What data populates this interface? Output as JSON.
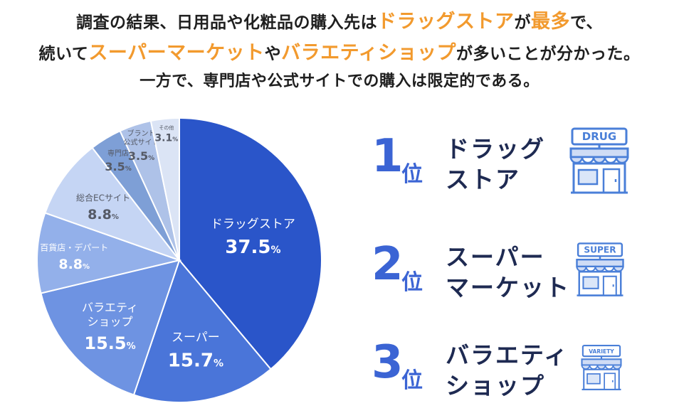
{
  "headline": {
    "line1": [
      {
        "text": "調査の結果、日用品や化粧品の購入先は",
        "accent": false
      },
      {
        "text": "ドラッグストア",
        "accent": true
      },
      {
        "text": "が",
        "accent": false
      },
      {
        "text": "最多",
        "accent": true
      },
      {
        "text": "で、",
        "accent": false
      }
    ],
    "line2": [
      {
        "text": "続いて",
        "accent": false
      },
      {
        "text": "スーパーマーケット",
        "accent": true
      },
      {
        "text": "や",
        "accent": false
      },
      {
        "text": "バラエティショップ",
        "accent": true
      },
      {
        "text": "が多いことが分かった。",
        "accent": false
      }
    ],
    "line3": "一方で、専門店や公式サイトでの購入は限定的である。"
  },
  "colors": {
    "accent": "#f29a2e",
    "rank_blue": "#3b64d4",
    "rank_text": "#1e2a52",
    "icon_blue": "#4a7fd8"
  },
  "chart_data": {
    "type": "pie",
    "unit": "%",
    "start": "12 o'clock",
    "direction": "clockwise",
    "slices": [
      {
        "label": "ドラッグストア",
        "value": 37.5,
        "value_text": "37.5",
        "color": "#2a55c9"
      },
      {
        "label": "スーパー",
        "value": 15.7,
        "value_text": "15.7",
        "color": "#4a75d9"
      },
      {
        "label": "バラエティ\nショップ",
        "value": 15.5,
        "value_text": "15.5",
        "color": "#6e93e2"
      },
      {
        "label": "百貨店・デパート",
        "value": 8.8,
        "value_text": "8.8",
        "color": "#93b0ea"
      },
      {
        "label": "総合ECサイト",
        "value": 8.8,
        "value_text": "8.8",
        "color": "#c5d5f4"
      },
      {
        "label": "専門店",
        "value": 3.5,
        "value_text": "3.5",
        "color": "#7e9fd6"
      },
      {
        "label": "ブランド\n公式サイト",
        "value": 3.5,
        "value_text": "3.5",
        "color": "#aec2e8"
      },
      {
        "label": "その他",
        "value": 3.1,
        "value_text": "3.1",
        "color": "#dbe4f5"
      }
    ]
  },
  "ranking": [
    {
      "rank": "1",
      "suffix": "位",
      "name": "ドラッグ\nストア",
      "sign": "DRUG",
      "icon": "drugstore-icon"
    },
    {
      "rank": "2",
      "suffix": "位",
      "name": "スーパー\nマーケット",
      "sign": "SUPER",
      "icon": "supermarket-icon"
    },
    {
      "rank": "3",
      "suffix": "位",
      "name": "バラエティ\nショップ",
      "sign": "VARIETY",
      "icon": "variety-shop-icon"
    }
  ]
}
